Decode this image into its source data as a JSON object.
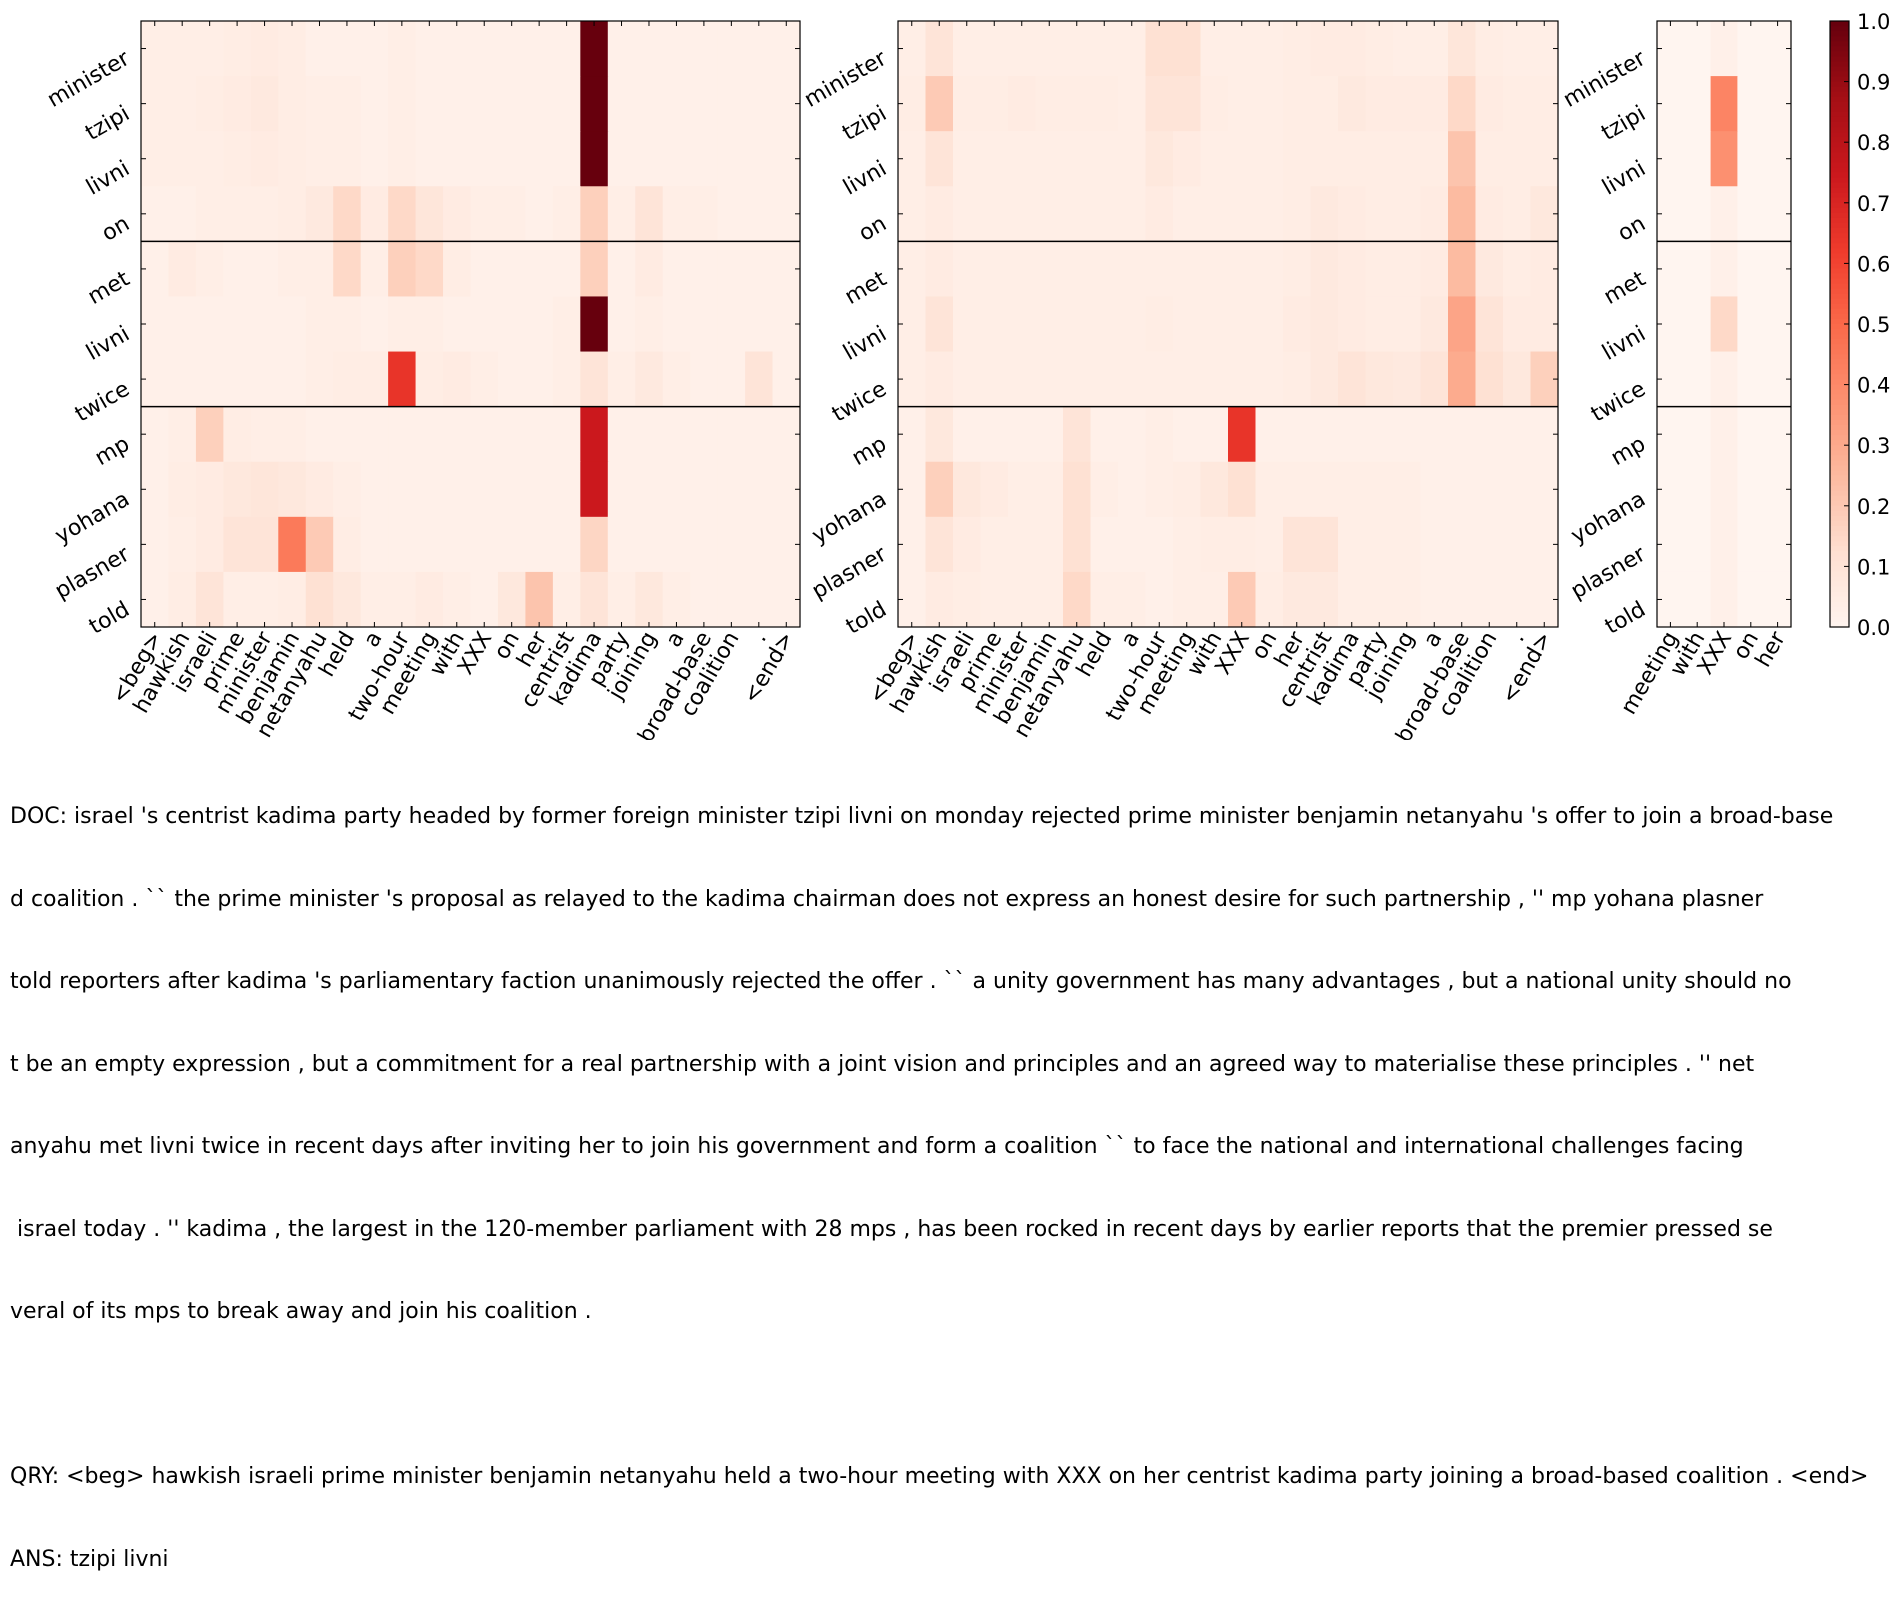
{
  "chart_data": {
    "type": "heatmap",
    "colormap": "Reds",
    "colorbar": {
      "min": 0.0,
      "max": 1.0,
      "ticks": [
        "0.0",
        "0.1",
        "0.2",
        "0.3",
        "0.4",
        "0.5",
        "0.6",
        "0.7",
        "0.8",
        "0.9",
        "1.0"
      ]
    },
    "row_labels": [
      "minister",
      "tzipi",
      "livni",
      "on",
      "met",
      "livni",
      "twice",
      "mp",
      "yohana",
      "plasner",
      "told"
    ],
    "row_groups": [
      4,
      3,
      4
    ],
    "panels": [
      {
        "columns": [
          "<beg>",
          "hawkish",
          "israeli",
          "prime",
          "minister",
          "benjamin",
          "netanyahu",
          "held",
          "a",
          "two-hour",
          "meeting",
          "with",
          "XXX",
          "on",
          "her",
          "centrist",
          "kadima",
          "party",
          "joining",
          "a",
          "broad-base",
          "coalition",
          ".",
          "<end>"
        ],
        "values": [
          [
            0.04,
            0.04,
            0.04,
            0.05,
            0.06,
            0.05,
            0.03,
            0.03,
            0.03,
            0.04,
            0.03,
            0.03,
            0.03,
            0.03,
            0.03,
            0.03,
            1.0,
            0.03,
            0.03,
            0.03,
            0.03,
            0.03,
            0.03,
            0.03
          ],
          [
            0.04,
            0.04,
            0.05,
            0.06,
            0.07,
            0.05,
            0.04,
            0.04,
            0.03,
            0.04,
            0.03,
            0.03,
            0.03,
            0.03,
            0.03,
            0.03,
            1.0,
            0.03,
            0.03,
            0.03,
            0.03,
            0.03,
            0.03,
            0.03
          ],
          [
            0.04,
            0.04,
            0.04,
            0.05,
            0.06,
            0.05,
            0.04,
            0.04,
            0.03,
            0.04,
            0.03,
            0.03,
            0.03,
            0.03,
            0.03,
            0.03,
            1.0,
            0.03,
            0.03,
            0.03,
            0.03,
            0.03,
            0.03,
            0.03
          ],
          [
            0.03,
            0.03,
            0.04,
            0.04,
            0.04,
            0.05,
            0.07,
            0.15,
            0.06,
            0.15,
            0.09,
            0.06,
            0.04,
            0.04,
            0.03,
            0.04,
            0.18,
            0.04,
            0.1,
            0.04,
            0.04,
            0.03,
            0.03,
            0.03
          ],
          [
            0.03,
            0.06,
            0.04,
            0.03,
            0.03,
            0.04,
            0.04,
            0.15,
            0.04,
            0.18,
            0.15,
            0.05,
            0.03,
            0.03,
            0.03,
            0.03,
            0.18,
            0.03,
            0.06,
            0.03,
            0.03,
            0.03,
            0.03,
            0.03
          ],
          [
            0.03,
            0.03,
            0.03,
            0.03,
            0.03,
            0.03,
            0.04,
            0.04,
            0.03,
            0.04,
            0.04,
            0.03,
            0.03,
            0.03,
            0.03,
            0.04,
            1.0,
            0.03,
            0.04,
            0.03,
            0.03,
            0.03,
            0.03,
            0.03
          ],
          [
            0.03,
            0.03,
            0.03,
            0.03,
            0.03,
            0.03,
            0.04,
            0.05,
            0.05,
            0.65,
            0.05,
            0.06,
            0.04,
            0.03,
            0.03,
            0.04,
            0.1,
            0.04,
            0.07,
            0.04,
            0.03,
            0.03,
            0.1,
            0.03
          ],
          [
            0.03,
            0.04,
            0.18,
            0.05,
            0.04,
            0.04,
            0.03,
            0.03,
            0.03,
            0.03,
            0.03,
            0.03,
            0.03,
            0.03,
            0.03,
            0.03,
            0.75,
            0.03,
            0.03,
            0.03,
            0.03,
            0.03,
            0.03,
            0.03
          ],
          [
            0.03,
            0.05,
            0.06,
            0.08,
            0.09,
            0.08,
            0.06,
            0.04,
            0.03,
            0.03,
            0.03,
            0.03,
            0.03,
            0.03,
            0.03,
            0.03,
            0.75,
            0.03,
            0.03,
            0.03,
            0.03,
            0.03,
            0.03,
            0.03
          ],
          [
            0.03,
            0.04,
            0.06,
            0.1,
            0.1,
            0.45,
            0.2,
            0.05,
            0.03,
            0.03,
            0.03,
            0.03,
            0.03,
            0.03,
            0.03,
            0.03,
            0.16,
            0.03,
            0.03,
            0.03,
            0.03,
            0.03,
            0.03,
            0.03
          ],
          [
            0.03,
            0.05,
            0.1,
            0.04,
            0.04,
            0.05,
            0.12,
            0.08,
            0.04,
            0.04,
            0.06,
            0.04,
            0.03,
            0.08,
            0.22,
            0.04,
            0.1,
            0.04,
            0.08,
            0.04,
            0.03,
            0.03,
            0.03,
            0.03
          ]
        ]
      },
      {
        "columns": [
          "<beg>",
          "hawkish",
          "israeli",
          "prime",
          "minister",
          "benjamin",
          "netanyahu",
          "held",
          "a",
          "two-hour",
          "meeting",
          "with",
          "XXX",
          "on",
          "her",
          "centrist",
          "kadima",
          "party",
          "joining",
          "a",
          "broad-base",
          "coalition",
          ".",
          "<end>"
        ],
        "values": [
          [
            0.04,
            0.1,
            0.04,
            0.04,
            0.04,
            0.04,
            0.04,
            0.04,
            0.04,
            0.12,
            0.12,
            0.04,
            0.04,
            0.04,
            0.05,
            0.06,
            0.06,
            0.05,
            0.04,
            0.04,
            0.09,
            0.05,
            0.04,
            0.04
          ],
          [
            0.05,
            0.2,
            0.05,
            0.05,
            0.06,
            0.05,
            0.05,
            0.05,
            0.04,
            0.1,
            0.1,
            0.05,
            0.04,
            0.04,
            0.05,
            0.05,
            0.07,
            0.06,
            0.06,
            0.06,
            0.15,
            0.06,
            0.05,
            0.05
          ],
          [
            0.04,
            0.1,
            0.04,
            0.04,
            0.04,
            0.04,
            0.04,
            0.04,
            0.04,
            0.08,
            0.06,
            0.04,
            0.04,
            0.04,
            0.05,
            0.05,
            0.05,
            0.05,
            0.05,
            0.05,
            0.22,
            0.05,
            0.05,
            0.05
          ],
          [
            0.04,
            0.06,
            0.04,
            0.04,
            0.04,
            0.04,
            0.04,
            0.04,
            0.04,
            0.06,
            0.04,
            0.04,
            0.04,
            0.04,
            0.05,
            0.07,
            0.06,
            0.05,
            0.05,
            0.06,
            0.25,
            0.06,
            0.05,
            0.08
          ],
          [
            0.04,
            0.06,
            0.04,
            0.04,
            0.04,
            0.04,
            0.04,
            0.04,
            0.04,
            0.04,
            0.04,
            0.04,
            0.04,
            0.04,
            0.05,
            0.07,
            0.06,
            0.05,
            0.05,
            0.06,
            0.25,
            0.07,
            0.05,
            0.06
          ],
          [
            0.04,
            0.1,
            0.04,
            0.04,
            0.04,
            0.04,
            0.04,
            0.04,
            0.04,
            0.05,
            0.04,
            0.04,
            0.04,
            0.04,
            0.06,
            0.07,
            0.06,
            0.05,
            0.05,
            0.07,
            0.32,
            0.1,
            0.06,
            0.06
          ],
          [
            0.04,
            0.06,
            0.04,
            0.04,
            0.04,
            0.04,
            0.04,
            0.04,
            0.04,
            0.04,
            0.04,
            0.04,
            0.04,
            0.04,
            0.05,
            0.07,
            0.1,
            0.08,
            0.07,
            0.1,
            0.3,
            0.12,
            0.08,
            0.18
          ],
          [
            0.03,
            0.08,
            0.03,
            0.03,
            0.03,
            0.03,
            0.1,
            0.03,
            0.03,
            0.04,
            0.03,
            0.03,
            0.65,
            0.03,
            0.03,
            0.03,
            0.03,
            0.03,
            0.03,
            0.03,
            0.03,
            0.03,
            0.03,
            0.03
          ],
          [
            0.03,
            0.18,
            0.08,
            0.06,
            0.04,
            0.04,
            0.12,
            0.04,
            0.03,
            0.04,
            0.05,
            0.08,
            0.12,
            0.04,
            0.04,
            0.04,
            0.04,
            0.04,
            0.04,
            0.03,
            0.03,
            0.03,
            0.03,
            0.03
          ],
          [
            0.03,
            0.1,
            0.06,
            0.04,
            0.04,
            0.04,
            0.12,
            0.03,
            0.03,
            0.03,
            0.04,
            0.05,
            0.05,
            0.04,
            0.1,
            0.1,
            0.04,
            0.04,
            0.04,
            0.03,
            0.03,
            0.03,
            0.03,
            0.03
          ],
          [
            0.03,
            0.06,
            0.05,
            0.04,
            0.04,
            0.04,
            0.15,
            0.04,
            0.04,
            0.03,
            0.04,
            0.04,
            0.2,
            0.05,
            0.07,
            0.07,
            0.04,
            0.04,
            0.04,
            0.03,
            0.03,
            0.03,
            0.03,
            0.03
          ]
        ]
      },
      {
        "columns": [
          "meeting",
          "with",
          "XXX",
          "on",
          "her"
        ],
        "values": [
          [
            0.0,
            0.0,
            0.03,
            0.0,
            0.0
          ],
          [
            0.0,
            0.0,
            0.42,
            0.0,
            0.0
          ],
          [
            0.0,
            0.0,
            0.38,
            0.0,
            0.0
          ],
          [
            0.0,
            0.0,
            0.03,
            0.0,
            0.0
          ],
          [
            0.0,
            0.0,
            0.03,
            0.0,
            0.0
          ],
          [
            0.0,
            0.0,
            0.15,
            0.0,
            0.0
          ],
          [
            0.0,
            0.0,
            0.03,
            0.0,
            0.0
          ],
          [
            0.0,
            0.0,
            0.03,
            0.0,
            0.0
          ],
          [
            0.0,
            0.0,
            0.03,
            0.0,
            0.0
          ],
          [
            0.0,
            0.0,
            0.03,
            0.0,
            0.0
          ],
          [
            0.0,
            0.0,
            0.03,
            0.0,
            0.0
          ]
        ]
      }
    ]
  },
  "text_block": {
    "doc_lines": [
      "DOC: israel 's centrist kadima party headed by former foreign minister tzipi livni on monday rejected prime minister benjamin netanyahu 's offer to join a broad-base",
      "d coalition . `` the prime minister 's proposal as relayed to the kadima chairman does not express an honest desire for such partnership , '' mp yohana plasner",
      "told reporters after kadima 's parliamentary faction unanimously rejected the offer . `` a unity government has many advantages , but a national unity should no",
      "t be an empty expression , but a commitment for a real partnership with a joint vision and principles and an agreed way to materialise these principles . '' net",
      "anyahu met livni twice in recent days after inviting her to join his government and form a coalition `` to face the national and international challenges facing",
      " israel today . '' kadima , the largest in the 120-member parliament with 28 mps , has been rocked in recent days by earlier reports that the premier pressed se",
      "veral of its mps to break away and join his coalition ."
    ],
    "qry": "QRY: <beg> hawkish israeli prime minister benjamin netanyahu held a two-hour meeting with XXX on her centrist kadima party joining a broad-based coalition . <end>",
    "ans": "ANS: tzipi livni"
  }
}
